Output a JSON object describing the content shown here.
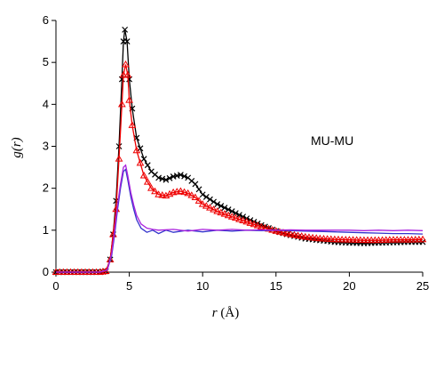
{
  "chart_data": {
    "type": "line",
    "annotation": "MU-MU",
    "xlabel_var": "r",
    "xlabel_unit": " (Å)",
    "ylabel": "g(r)",
    "xlim": [
      0,
      25
    ],
    "ylim": [
      0,
      6
    ],
    "xticks": [
      0,
      5,
      10,
      15,
      20,
      25
    ],
    "yticks": [
      0,
      1,
      2,
      3,
      4,
      5,
      6
    ],
    "grid": false,
    "series": [
      {
        "color": "#000000",
        "marker": "x",
        "points": [
          [
            0,
            0
          ],
          [
            1,
            0
          ],
          [
            2,
            0
          ],
          [
            3,
            0
          ],
          [
            3.4,
            0.02
          ],
          [
            3.7,
            0.3
          ],
          [
            3.9,
            0.9
          ],
          [
            4.1,
            1.7
          ],
          [
            4.3,
            3.0
          ],
          [
            4.5,
            4.6
          ],
          [
            4.6,
            5.5
          ],
          [
            4.7,
            5.78
          ],
          [
            4.85,
            5.5
          ],
          [
            5.0,
            4.6
          ],
          [
            5.2,
            3.9
          ],
          [
            5.5,
            3.2
          ],
          [
            6.0,
            2.7
          ],
          [
            6.5,
            2.4
          ],
          [
            7.0,
            2.25
          ],
          [
            7.5,
            2.2
          ],
          [
            8.0,
            2.28
          ],
          [
            8.5,
            2.32
          ],
          [
            9.0,
            2.25
          ],
          [
            9.5,
            2.1
          ],
          [
            10,
            1.85
          ],
          [
            11,
            1.62
          ],
          [
            12,
            1.45
          ],
          [
            13,
            1.28
          ],
          [
            14,
            1.12
          ],
          [
            15,
            0.98
          ],
          [
            16,
            0.88
          ],
          [
            17,
            0.8
          ],
          [
            18,
            0.76
          ],
          [
            19,
            0.72
          ],
          [
            20,
            0.7
          ],
          [
            21,
            0.69
          ],
          [
            22,
            0.7
          ],
          [
            23,
            0.71
          ],
          [
            24,
            0.72
          ],
          [
            25,
            0.72
          ]
        ]
      },
      {
        "color": "#ee0000",
        "marker": "triangle",
        "points": [
          [
            0,
            0
          ],
          [
            1,
            0
          ],
          [
            2,
            0
          ],
          [
            3,
            0
          ],
          [
            3.4,
            0.02
          ],
          [
            3.7,
            0.3
          ],
          [
            3.9,
            0.9
          ],
          [
            4.1,
            1.5
          ],
          [
            4.3,
            2.7
          ],
          [
            4.5,
            4.0
          ],
          [
            4.6,
            4.7
          ],
          [
            4.75,
            4.95
          ],
          [
            4.9,
            4.7
          ],
          [
            5.0,
            4.1
          ],
          [
            5.2,
            3.5
          ],
          [
            5.5,
            2.9
          ],
          [
            6.0,
            2.3
          ],
          [
            6.5,
            2.0
          ],
          [
            7.0,
            1.85
          ],
          [
            7.5,
            1.82
          ],
          [
            8.0,
            1.9
          ],
          [
            8.5,
            1.93
          ],
          [
            9.0,
            1.88
          ],
          [
            9.5,
            1.78
          ],
          [
            10,
            1.62
          ],
          [
            11,
            1.45
          ],
          [
            12,
            1.32
          ],
          [
            13,
            1.2
          ],
          [
            14,
            1.08
          ],
          [
            15,
            0.98
          ],
          [
            16,
            0.9
          ],
          [
            17,
            0.84
          ],
          [
            18,
            0.8
          ],
          [
            19,
            0.78
          ],
          [
            20,
            0.77
          ],
          [
            21,
            0.76
          ],
          [
            22,
            0.76
          ],
          [
            23,
            0.77
          ],
          [
            24,
            0.77
          ],
          [
            25,
            0.78
          ]
        ]
      },
      {
        "color": "#3333cc",
        "marker": "none",
        "points": [
          [
            0,
            0
          ],
          [
            1,
            0
          ],
          [
            2,
            0
          ],
          [
            3,
            0
          ],
          [
            3.5,
            0.05
          ],
          [
            3.8,
            0.4
          ],
          [
            4.0,
            0.9
          ],
          [
            4.2,
            1.5
          ],
          [
            4.4,
            2.0
          ],
          [
            4.6,
            2.4
          ],
          [
            4.75,
            2.45
          ],
          [
            4.9,
            2.2
          ],
          [
            5.1,
            1.8
          ],
          [
            5.3,
            1.5
          ],
          [
            5.5,
            1.25
          ],
          [
            5.8,
            1.05
          ],
          [
            6.2,
            0.95
          ],
          [
            6.6,
            1.0
          ],
          [
            7.0,
            0.92
          ],
          [
            7.5,
            1.0
          ],
          [
            8.0,
            0.95
          ],
          [
            9,
            1.0
          ],
          [
            10,
            0.96
          ],
          [
            11,
            1.0
          ],
          [
            12,
            0.98
          ],
          [
            13,
            1.0
          ],
          [
            14,
            0.99
          ],
          [
            15,
            1.0
          ],
          [
            16,
            0.99
          ],
          [
            17,
            0.98
          ],
          [
            18,
            0.97
          ],
          [
            19,
            0.96
          ],
          [
            20,
            0.95
          ],
          [
            21,
            0.94
          ],
          [
            22,
            0.93
          ],
          [
            23,
            0.92
          ],
          [
            24,
            0.92
          ],
          [
            25,
            0.91
          ]
        ]
      },
      {
        "color": "#aa22dd",
        "marker": "none",
        "points": [
          [
            0,
            0
          ],
          [
            1,
            0
          ],
          [
            2,
            0
          ],
          [
            3,
            0
          ],
          [
            3.5,
            0.05
          ],
          [
            3.8,
            0.45
          ],
          [
            4.0,
            1.0
          ],
          [
            4.2,
            1.6
          ],
          [
            4.4,
            2.1
          ],
          [
            4.6,
            2.5
          ],
          [
            4.75,
            2.55
          ],
          [
            4.9,
            2.3
          ],
          [
            5.1,
            1.9
          ],
          [
            5.3,
            1.6
          ],
          [
            5.5,
            1.35
          ],
          [
            5.8,
            1.15
          ],
          [
            6.2,
            1.05
          ],
          [
            6.6,
            1.02
          ],
          [
            7.0,
            1.0
          ],
          [
            8,
            1.02
          ],
          [
            9,
            0.98
          ],
          [
            10,
            1.02
          ],
          [
            11,
            1.0
          ],
          [
            12,
            1.02
          ],
          [
            13,
            1.0
          ],
          [
            14,
            1.01
          ],
          [
            15,
            1.0
          ],
          [
            16,
            1.01
          ],
          [
            17,
            1.0
          ],
          [
            18,
            1.0
          ],
          [
            19,
            1.0
          ],
          [
            20,
            1.0
          ],
          [
            21,
            0.99
          ],
          [
            22,
            1.0
          ],
          [
            23,
            0.99
          ],
          [
            24,
            1.0
          ],
          [
            25,
            0.99
          ]
        ]
      }
    ]
  }
}
